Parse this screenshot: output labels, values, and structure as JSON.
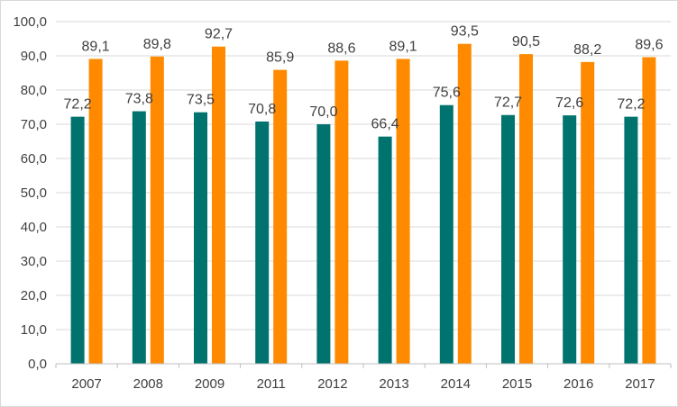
{
  "chart_data": {
    "type": "bar",
    "categories": [
      "2007",
      "2008",
      "2009",
      "2011",
      "2012",
      "2013",
      "2014",
      "2015",
      "2016",
      "2017"
    ],
    "series": [
      {
        "color": "#00736e",
        "values": [
          72.2,
          73.8,
          73.5,
          70.8,
          70.0,
          66.4,
          75.6,
          72.7,
          72.6,
          72.2
        ],
        "labels": [
          "72,2",
          "73,8",
          "73,5",
          "70,8",
          "70,0",
          "66,4",
          "75,6",
          "72,7",
          "72,6",
          "72,2"
        ]
      },
      {
        "color": "#ff8a00",
        "values": [
          89.1,
          89.8,
          92.7,
          85.9,
          88.6,
          89.1,
          93.5,
          90.5,
          88.2,
          89.6
        ],
        "labels": [
          "89,1",
          "89,8",
          "92,7",
          "85,9",
          "88,6",
          "89,1",
          "93,5",
          "90,5",
          "88,2",
          "89,6"
        ]
      }
    ],
    "ylim": [
      0,
      100
    ],
    "yticks": [
      0,
      10,
      20,
      30,
      40,
      50,
      60,
      70,
      80,
      90,
      100
    ],
    "ytick_labels": [
      "0,0",
      "10,0",
      "20,0",
      "30,0",
      "40,0",
      "50,0",
      "60,0",
      "70,0",
      "80,0",
      "90,0",
      "100,0"
    ],
    "grid": true,
    "legend": "none",
    "title": "",
    "xlabel": "",
    "ylabel": "",
    "gridline_color": "#d9d9d9",
    "axis_color": "#bfbfbf"
  }
}
